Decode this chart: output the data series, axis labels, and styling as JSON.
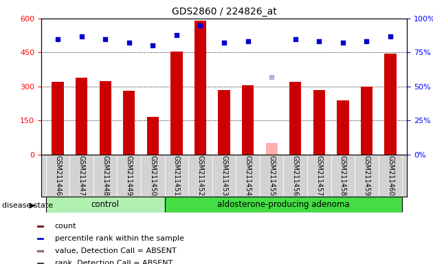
{
  "title": "GDS2860 / 224826_at",
  "samples": [
    "GSM211446",
    "GSM211447",
    "GSM211448",
    "GSM211449",
    "GSM211450",
    "GSM211451",
    "GSM211452",
    "GSM211453",
    "GSM211454",
    "GSM211455",
    "GSM211456",
    "GSM211457",
    "GSM211458",
    "GSM211459",
    "GSM211460"
  ],
  "counts": [
    320,
    340,
    325,
    280,
    165,
    455,
    590,
    285,
    305,
    50,
    320,
    285,
    240,
    300,
    445
  ],
  "percentiles": [
    85,
    87,
    85,
    82,
    80,
    88,
    95,
    82,
    83,
    null,
    85,
    83,
    82,
    83,
    87
  ],
  "absent_value": [
    null,
    null,
    null,
    null,
    null,
    null,
    null,
    null,
    null,
    50,
    null,
    null,
    null,
    null,
    null
  ],
  "absent_rank": [
    null,
    null,
    null,
    null,
    null,
    null,
    null,
    null,
    null,
    57,
    null,
    null,
    null,
    null,
    null
  ],
  "control_group": [
    0,
    1,
    2,
    3,
    4
  ],
  "adenoma_group": [
    5,
    6,
    7,
    8,
    9,
    10,
    11,
    12,
    13,
    14
  ],
  "ylim_left": [
    0,
    600
  ],
  "ylim_right": [
    0,
    100
  ],
  "yticks_left": [
    0,
    150,
    300,
    450,
    600
  ],
  "yticks_right": [
    0,
    25,
    50,
    75,
    100
  ],
  "bar_color": "#cc0000",
  "absent_bar_color": "#ffb0b0",
  "percentile_color": "#0000cc",
  "absent_rank_color": "#b0b4d8",
  "bg_color": "#d3d3d3",
  "control_fill": "#b0f0b0",
  "adenoma_fill": "#44dd44",
  "legend_items": [
    "count",
    "percentile rank within the sample",
    "value, Detection Call = ABSENT",
    "rank, Detection Call = ABSENT"
  ],
  "legend_colors": [
    "#cc0000",
    "#0000cc",
    "#ffb0b0",
    "#b0b4d8"
  ]
}
